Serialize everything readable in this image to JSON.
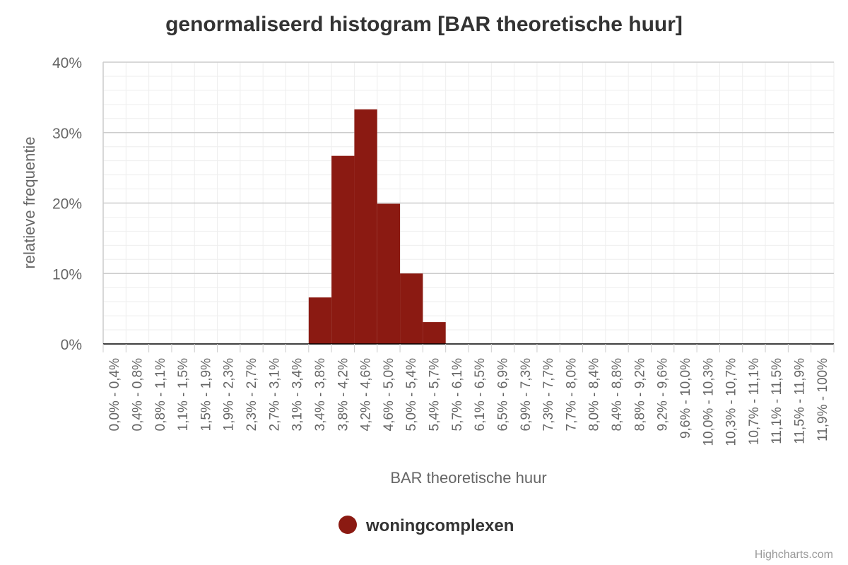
{
  "chart_data": {
    "type": "bar",
    "title": "genormaliseerd histogram [BAR theoretische huur]",
    "xlabel": "BAR theoretische huur",
    "ylabel": "relatieve frequentie",
    "ylim": [
      0,
      40
    ],
    "yticks": [
      "0%",
      "10%",
      "20%",
      "30%",
      "40%"
    ],
    "grid": true,
    "legend_position": "bottom-center",
    "categories": [
      "0,0% - 0,4%",
      "0,4% - 0,8%",
      "0,8% - 1,1%",
      "1,1% - 1,5%",
      "1,5% - 1,9%",
      "1,9% - 2,3%",
      "2,3% - 2,7%",
      "2,7% - 3,1%",
      "3,1% - 3,4%",
      "3,4% - 3,8%",
      "3,8% - 4,2%",
      "4,2% - 4,6%",
      "4,6% - 5,0%",
      "5,0% - 5,4%",
      "5,4% - 5,7%",
      "5,7% - 6,1%",
      "6,1% - 6,5%",
      "6,5% - 6,9%",
      "6,9% - 7,3%",
      "7,3% - 7,7%",
      "7,7% - 8,0%",
      "8,0% - 8,4%",
      "8,4% - 8,8%",
      "8,8% - 9,2%",
      "9,2% - 9,6%",
      "9,6% - 10,0%",
      "10,0% - 10,3%",
      "10,3% - 10,7%",
      "10,7% - 11,1%",
      "11,1% - 11,5%",
      "11,5% - 11,9%",
      "11,9% - 100%"
    ],
    "series": [
      {
        "name": "woningcomplexen",
        "color": "#8b1a12",
        "values": [
          0,
          0,
          0,
          0,
          0,
          0,
          0,
          0,
          0,
          6.6,
          26.7,
          33.3,
          19.9,
          10.0,
          3.1,
          0,
          0,
          0,
          0,
          0,
          0,
          0,
          0,
          0,
          0,
          0,
          0,
          0,
          0,
          0,
          0,
          0
        ]
      }
    ]
  },
  "credits": "Highcharts.com",
  "colors": {
    "series": "#8b1a12",
    "grid_major": "#cccccc",
    "grid_minor": "#eeeeee",
    "axis": "#000000",
    "text": "#333333",
    "muted": "#666666"
  }
}
